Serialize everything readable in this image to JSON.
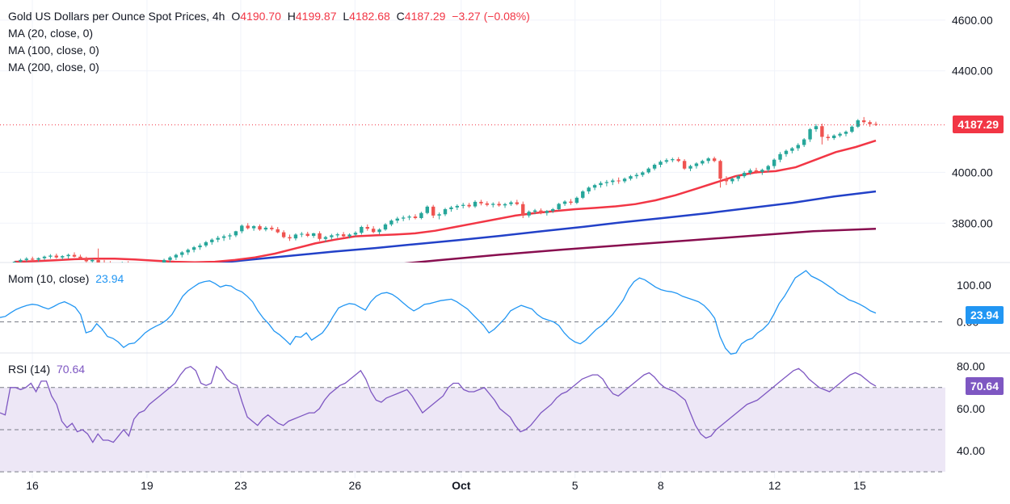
{
  "header": {
    "symbol": "Gold US Dollars per Ounce Spot Prices, 4h",
    "open_label": "O",
    "open": "4190.70",
    "high_label": "H",
    "high": "4199.87",
    "low_label": "L",
    "low": "4182.68",
    "close_label": "C",
    "close": "4187.29",
    "change": "−3.27 (−0.08%)",
    "ma_labels": [
      "MA (20, close, 0)",
      "MA (100, close, 0)",
      "MA (200, close, 0)"
    ]
  },
  "colors": {
    "up": "#26a69a",
    "down": "#ef5350",
    "ma20": "#f23645",
    "ma100": "#2241c8",
    "ma200": "#880e4f",
    "mom": "#2196f3",
    "rsi": "#7e57c2",
    "rsi_band": "#ede7f6",
    "grid": "#f0f3fa",
    "text": "#131722"
  },
  "chart_data": [
    {
      "type": "candlestick",
      "title": "Gold US Dollars per Ounce Spot Prices, 4h",
      "x_tick_labels": [
        "16",
        "19",
        "23",
        "26",
        "Oct",
        "5",
        "8",
        "12",
        "15"
      ],
      "y_ticks": [
        "4600.00",
        "4400.00",
        "4000.00",
        "3800.00"
      ],
      "ylim": [
        3645,
        4660
      ],
      "last_price": "4187.29",
      "candles_per_day": 6,
      "candles": [
        [
          3642,
          3650,
          3635,
          3648
        ],
        [
          3648,
          3660,
          3640,
          3655
        ],
        [
          3655,
          3666,
          3648,
          3660
        ],
        [
          3660,
          3668,
          3650,
          3656
        ],
        [
          3656,
          3665,
          3648,
          3662
        ],
        [
          3662,
          3672,
          3655,
          3668
        ],
        [
          3668,
          3678,
          3660,
          3672
        ],
        [
          3672,
          3680,
          3660,
          3665
        ],
        [
          3665,
          3674,
          3656,
          3670
        ],
        [
          3670,
          3680,
          3660,
          3675
        ],
        [
          3675,
          3685,
          3665,
          3668
        ],
        [
          3668,
          3676,
          3655,
          3660
        ],
        [
          3660,
          3668,
          3645,
          3650
        ],
        [
          3650,
          3660,
          3640,
          3655
        ],
        [
          3655,
          3700,
          3640,
          3645
        ],
        [
          3645,
          3655,
          3630,
          3640
        ],
        [
          3640,
          3650,
          3625,
          3632
        ],
        [
          3632,
          3645,
          3620,
          3638
        ],
        [
          3638,
          3648,
          3628,
          3642
        ],
        [
          3642,
          3650,
          3625,
          3630
        ],
        [
          3630,
          3640,
          3618,
          3625
        ],
        [
          3625,
          3640,
          3615,
          3635
        ],
        [
          3635,
          3645,
          3622,
          3628
        ],
        [
          3628,
          3638,
          3615,
          3630
        ],
        [
          3630,
          3645,
          3620,
          3640
        ],
        [
          3640,
          3660,
          3632,
          3655
        ],
        [
          3655,
          3670,
          3645,
          3665
        ],
        [
          3665,
          3680,
          3655,
          3675
        ],
        [
          3675,
          3690,
          3665,
          3685
        ],
        [
          3685,
          3700,
          3675,
          3695
        ],
        [
          3695,
          3710,
          3685,
          3705
        ],
        [
          3705,
          3720,
          3695,
          3712
        ],
        [
          3712,
          3730,
          3705,
          3725
        ],
        [
          3725,
          3740,
          3715,
          3735
        ],
        [
          3735,
          3750,
          3725,
          3742
        ],
        [
          3742,
          3755,
          3730,
          3748
        ],
        [
          3748,
          3760,
          3735,
          3752
        ],
        [
          3752,
          3770,
          3745,
          3768
        ],
        [
          3768,
          3795,
          3760,
          3790
        ],
        [
          3790,
          3800,
          3775,
          3780
        ],
        [
          3780,
          3792,
          3770,
          3788
        ],
        [
          3788,
          3795,
          3770,
          3775
        ],
        [
          3775,
          3788,
          3768,
          3782
        ],
        [
          3782,
          3790,
          3770,
          3776
        ],
        [
          3776,
          3785,
          3760,
          3764
        ],
        [
          3764,
          3772,
          3740,
          3745
        ],
        [
          3745,
          3755,
          3730,
          3740
        ],
        [
          3740,
          3760,
          3732,
          3755
        ],
        [
          3755,
          3765,
          3745,
          3758
        ],
        [
          3758,
          3766,
          3745,
          3750
        ],
        [
          3750,
          3762,
          3742,
          3760
        ],
        [
          3760,
          3768,
          3730,
          3738
        ],
        [
          3738,
          3750,
          3725,
          3745
        ],
        [
          3745,
          3758,
          3735,
          3752
        ],
        [
          3752,
          3762,
          3742,
          3756
        ],
        [
          3756,
          3765,
          3745,
          3748
        ],
        [
          3748,
          3760,
          3740,
          3755
        ],
        [
          3755,
          3768,
          3748,
          3762
        ],
        [
          3762,
          3790,
          3755,
          3785
        ],
        [
          3785,
          3795,
          3770,
          3778
        ],
        [
          3778,
          3788,
          3760,
          3765
        ],
        [
          3765,
          3780,
          3755,
          3775
        ],
        [
          3775,
          3800,
          3770,
          3795
        ],
        [
          3795,
          3815,
          3788,
          3810
        ],
        [
          3810,
          3825,
          3800,
          3818
        ],
        [
          3818,
          3830,
          3808,
          3822
        ],
        [
          3822,
          3832,
          3812,
          3826
        ],
        [
          3826,
          3835,
          3815,
          3820
        ],
        [
          3820,
          3845,
          3815,
          3840
        ],
        [
          3840,
          3870,
          3835,
          3865
        ],
        [
          3865,
          3872,
          3820,
          3830
        ],
        [
          3830,
          3842,
          3815,
          3835
        ],
        [
          3835,
          3860,
          3828,
          3855
        ],
        [
          3855,
          3868,
          3845,
          3862
        ],
        [
          3862,
          3874,
          3852,
          3868
        ],
        [
          3868,
          3880,
          3858,
          3872
        ],
        [
          3872,
          3880,
          3860,
          3866
        ],
        [
          3866,
          3890,
          3860,
          3884
        ],
        [
          3884,
          3892,
          3870,
          3878
        ],
        [
          3878,
          3886,
          3866,
          3872
        ],
        [
          3872,
          3882,
          3862,
          3876
        ],
        [
          3876,
          3885,
          3865,
          3870
        ],
        [
          3870,
          3880,
          3860,
          3875
        ],
        [
          3875,
          3888,
          3868,
          3882
        ],
        [
          3882,
          3892,
          3870,
          3875
        ],
        [
          3875,
          3885,
          3820,
          3830
        ],
        [
          3830,
          3850,
          3822,
          3845
        ],
        [
          3845,
          3856,
          3835,
          3850
        ],
        [
          3850,
          3858,
          3835,
          3840
        ],
        [
          3840,
          3852,
          3830,
          3848
        ],
        [
          3848,
          3860,
          3840,
          3855
        ],
        [
          3855,
          3880,
          3850,
          3876
        ],
        [
          3876,
          3890,
          3868,
          3885
        ],
        [
          3885,
          3895,
          3872,
          3880
        ],
        [
          3880,
          3905,
          3875,
          3900
        ],
        [
          3900,
          3930,
          3895,
          3925
        ],
        [
          3925,
          3945,
          3915,
          3940
        ],
        [
          3940,
          3955,
          3930,
          3950
        ],
        [
          3950,
          3965,
          3940,
          3958
        ],
        [
          3958,
          3970,
          3945,
          3962
        ],
        [
          3962,
          3975,
          3950,
          3968
        ],
        [
          3968,
          3980,
          3955,
          3965
        ],
        [
          3965,
          3980,
          3958,
          3975
        ],
        [
          3975,
          3990,
          3968,
          3985
        ],
        [
          3985,
          3998,
          3975,
          3990
        ],
        [
          3990,
          4005,
          3982,
          4000
        ],
        [
          4000,
          4020,
          3995,
          4015
        ],
        [
          4015,
          4035,
          4008,
          4030
        ],
        [
          4030,
          4048,
          4020,
          4042
        ],
        [
          4042,
          4055,
          4035,
          4048
        ],
        [
          4048,
          4058,
          4040,
          4052
        ],
        [
          4052,
          4060,
          4040,
          4045
        ],
        [
          4045,
          4052,
          4010,
          4015
        ],
        [
          4015,
          4030,
          4005,
          4025
        ],
        [
          4025,
          4040,
          4015,
          4035
        ],
        [
          4035,
          4050,
          4028,
          4045
        ],
        [
          4045,
          4060,
          4035,
          4055
        ],
        [
          4055,
          4062,
          4040,
          4045
        ],
        [
          4045,
          4050,
          3940,
          3975
        ],
        [
          3975,
          3985,
          3950,
          3965
        ],
        [
          3965,
          3980,
          3955,
          3975
        ],
        [
          3975,
          3990,
          3965,
          3985
        ],
        [
          3985,
          4005,
          3978,
          3998
        ],
        [
          3998,
          4015,
          3990,
          4008
        ],
        [
          4008,
          4018,
          3995,
          4002
        ],
        [
          4002,
          4015,
          3990,
          4010
        ],
        [
          4010,
          4030,
          4000,
          4025
        ],
        [
          4025,
          4055,
          4015,
          4050
        ],
        [
          4050,
          4080,
          4040,
          4072
        ],
        [
          4072,
          4090,
          4062,
          4085
        ],
        [
          4085,
          4100,
          4075,
          4095
        ],
        [
          4095,
          4115,
          4085,
          4108
        ],
        [
          4108,
          4135,
          4100,
          4130
        ],
        [
          4130,
          4175,
          4120,
          4170
        ],
        [
          4170,
          4190,
          4160,
          4182
        ],
        [
          4182,
          4192,
          4110,
          4140
        ],
        [
          4140,
          4150,
          4125,
          4135
        ],
        [
          4135,
          4150,
          4128,
          4145
        ],
        [
          4145,
          4158,
          4138,
          4152
        ],
        [
          4152,
          4165,
          4142,
          4160
        ],
        [
          4160,
          4185,
          4155,
          4180
        ],
        [
          4180,
          4210,
          4175,
          4205
        ],
        [
          4205,
          4218,
          4190,
          4198
        ],
        [
          4198,
          4205,
          4180,
          4190
        ],
        [
          4190.7,
          4199.87,
          4182.68,
          4187.29
        ]
      ],
      "ma20": [
        3648,
        3650,
        3654,
        3658,
        3660,
        3660,
        3657,
        3652,
        3648,
        3646,
        3648,
        3655,
        3665,
        3680,
        3700,
        3720,
        3735,
        3748,
        3752,
        3755,
        3760,
        3770,
        3785,
        3800,
        3815,
        3830,
        3840,
        3848,
        3855,
        3860,
        3866,
        3875,
        3890,
        3910,
        3935,
        3960,
        3985,
        4000,
        4005,
        4020,
        4050,
        4080,
        4100,
        4125
      ],
      "ma100": [
        3550,
        3570,
        3590,
        3608,
        3625,
        3640,
        3656,
        3672,
        3688,
        3702,
        3718,
        3733,
        3750,
        3768,
        3786,
        3805,
        3822,
        3840,
        3860,
        3880,
        3905,
        3925
      ],
      "ma200": [
        3480,
        3505,
        3530,
        3555,
        3580,
        3605,
        3630,
        3654,
        3676,
        3696,
        3714,
        3732,
        3750,
        3768,
        3778
      ]
    },
    {
      "type": "line",
      "title": "Mom (10, close)",
      "last_value": "23.94",
      "y_ticks": [
        "100.00",
        "0.00"
      ],
      "ylim": [
        -85,
        160
      ],
      "values": [
        12,
        15,
        25,
        34,
        40,
        45,
        48,
        46,
        40,
        35,
        42,
        50,
        55,
        48,
        40,
        20,
        -30,
        -25,
        -5,
        -20,
        -40,
        -45,
        -55,
        -70,
        -60,
        -58,
        -45,
        -30,
        -20,
        -12,
        -5,
        5,
        20,
        45,
        70,
        85,
        95,
        105,
        110,
        112,
        105,
        95,
        100,
        98,
        88,
        82,
        70,
        55,
        30,
        10,
        -5,
        -25,
        -35,
        -48,
        -62,
        -40,
        -42,
        -30,
        -50,
        -40,
        -30,
        -10,
        15,
        38,
        45,
        50,
        48,
        40,
        32,
        55,
        70,
        78,
        80,
        75,
        65,
        52,
        40,
        30,
        38,
        48,
        50,
        54,
        58,
        60,
        62,
        55,
        45,
        35,
        20,
        5,
        -10,
        -30,
        -20,
        -5,
        10,
        30,
        38,
        45,
        40,
        35,
        20,
        10,
        5,
        0,
        -10,
        -30,
        -45,
        -55,
        -60,
        -50,
        -35,
        -20,
        -10,
        5,
        20,
        40,
        60,
        90,
        110,
        120,
        115,
        105,
        95,
        88,
        84,
        82,
        78,
        70,
        65,
        60,
        55,
        45,
        30,
        10,
        -40,
        -72,
        -88,
        -85,
        -60,
        -50,
        -45,
        -30,
        -20,
        -5,
        20,
        50,
        70,
        95,
        120,
        130,
        140,
        125,
        118,
        110,
        100,
        90,
        78,
        70,
        60,
        55,
        48,
        40,
        30,
        23.94
      ]
    },
    {
      "type": "line",
      "title": "RSI (14)",
      "last_value": "70.64",
      "y_ticks": [
        "80.00",
        "60.00",
        "40.00"
      ],
      "ylim": [
        27,
        86
      ],
      "band": [
        30,
        70
      ],
      "values": [
        58,
        57,
        70,
        70,
        69,
        70,
        72,
        68,
        73,
        73,
        66,
        62,
        54,
        51,
        53,
        49,
        50,
        48,
        44,
        48,
        45,
        45,
        44,
        47,
        50,
        47,
        55,
        58,
        59,
        62,
        64,
        66,
        68,
        70,
        72,
        76,
        79,
        80,
        78,
        72,
        71,
        72,
        80,
        78,
        74,
        72,
        71,
        63,
        56,
        54,
        52,
        55,
        57,
        55,
        53,
        52,
        54,
        55,
        56,
        57,
        58,
        58,
        60,
        64,
        67,
        69,
        71,
        72,
        74,
        76,
        78,
        74,
        68,
        64,
        63,
        65,
        66,
        67,
        68,
        69,
        66,
        62,
        58,
        60,
        62,
        64,
        66,
        70,
        72,
        72,
        69,
        68,
        68,
        69,
        70,
        67,
        64,
        60,
        58,
        56,
        52,
        49,
        50,
        52,
        55,
        58,
        60,
        62,
        65,
        67,
        68,
        70,
        72,
        74,
        75,
        76,
        76,
        74,
        70,
        67,
        66,
        68,
        70,
        72,
        74,
        76,
        77,
        75,
        72,
        70,
        69,
        68,
        66,
        64,
        58,
        52,
        48,
        46,
        47,
        50,
        52,
        54,
        56,
        58,
        60,
        62,
        63,
        64,
        66,
        68,
        70,
        72,
        74,
        76,
        78,
        79,
        77,
        74,
        72,
        70,
        69,
        68,
        70,
        72,
        74,
        76,
        77,
        76,
        74,
        72,
        70.64
      ]
    }
  ]
}
